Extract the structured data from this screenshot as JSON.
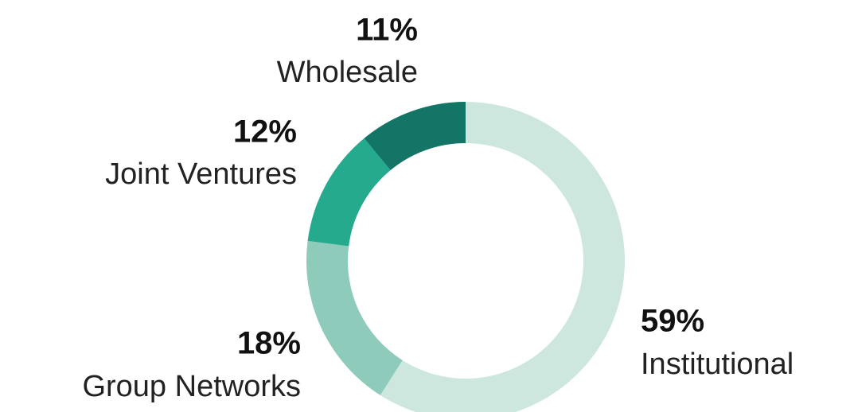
{
  "chart_data": {
    "type": "donut",
    "categories": [
      "Institutional",
      "Group Networks",
      "Joint Ventures",
      "Wholesale"
    ],
    "values": [
      59,
      18,
      12,
      11
    ],
    "value_labels": [
      "59%",
      "18%",
      "12%",
      "11%"
    ],
    "colors": [
      "#cde7df",
      "#8ecbbb",
      "#26aa8e",
      "#127565"
    ]
  }
}
